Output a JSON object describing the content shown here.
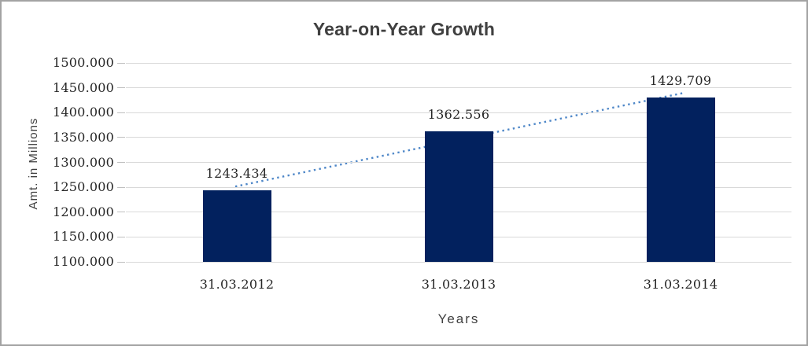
{
  "frame": {
    "background": "#ffffff",
    "border_color": "#a3a3a3"
  },
  "chart_data": {
    "type": "bar",
    "title": "Year-on-Year Growth",
    "xlabel": "Years",
    "ylabel": "Amt. in Millions",
    "categories": [
      "31.03.2012",
      "31.03.2013",
      "31.03.2014"
    ],
    "values": [
      1243.434,
      1362.556,
      1429.709
    ],
    "data_labels": [
      "1243.434",
      "1362.556",
      "1429.709"
    ],
    "ylim": [
      1100,
      1500
    ],
    "ytick_step": 50,
    "ytick_labels": [
      "1100.000",
      "1150.000",
      "1200.000",
      "1250.000",
      "1300.000",
      "1350.000",
      "1400.000",
      "1450.000",
      "1500.000"
    ],
    "grid": "horizontal",
    "legend": "none",
    "trendline": {
      "type": "linear",
      "style": "dotted"
    },
    "colors": {
      "bar": "#02215e",
      "trend": "#4e87c8",
      "gridline": "#d9d9d9",
      "tick": "#bfbfbf",
      "title_text": "#404040",
      "axis_title_text": "#3f3f3f",
      "label_text": "#262626"
    }
  }
}
